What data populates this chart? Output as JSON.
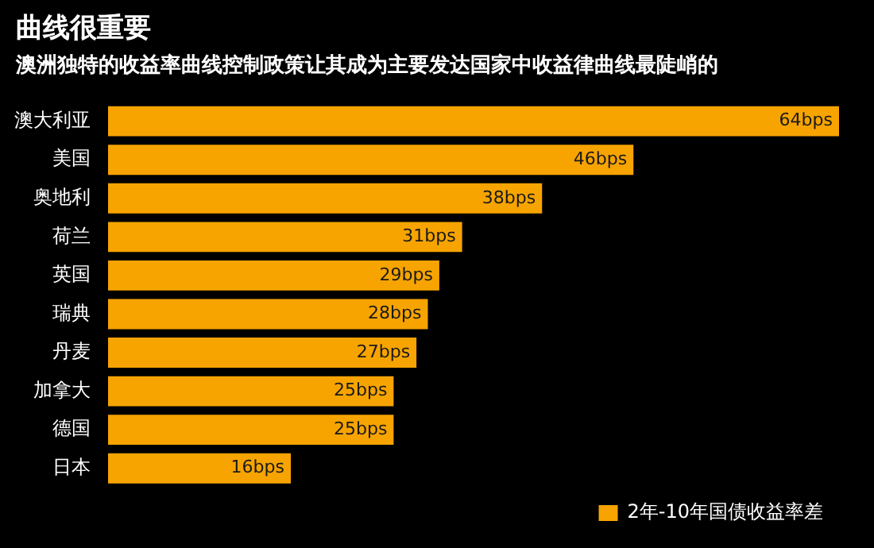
{
  "chart_data": {
    "type": "bar",
    "orientation": "horizontal",
    "title": "曲线很重要",
    "subtitle": "澳洲独特的收益率曲线控制政策让其成为主要发达国家中收益律曲线最陡峭的",
    "categories": [
      "澳大利亚",
      "美国",
      "奥地利",
      "荷兰",
      "英国",
      "瑞典",
      "丹麦",
      "加拿大",
      "德国",
      "日本"
    ],
    "series": [
      {
        "name": "2年-10年国债收益率差",
        "color": "#f7a400",
        "values": [
          64,
          46,
          38,
          31,
          29,
          28,
          27,
          25,
          25,
          16
        ],
        "value_labels": [
          "64bps",
          "46bps",
          "38bps",
          "31bps",
          "29bps",
          "28bps",
          "27bps",
          "25bps",
          "25bps",
          "16bps"
        ]
      }
    ],
    "legend": "bottom right"
  }
}
